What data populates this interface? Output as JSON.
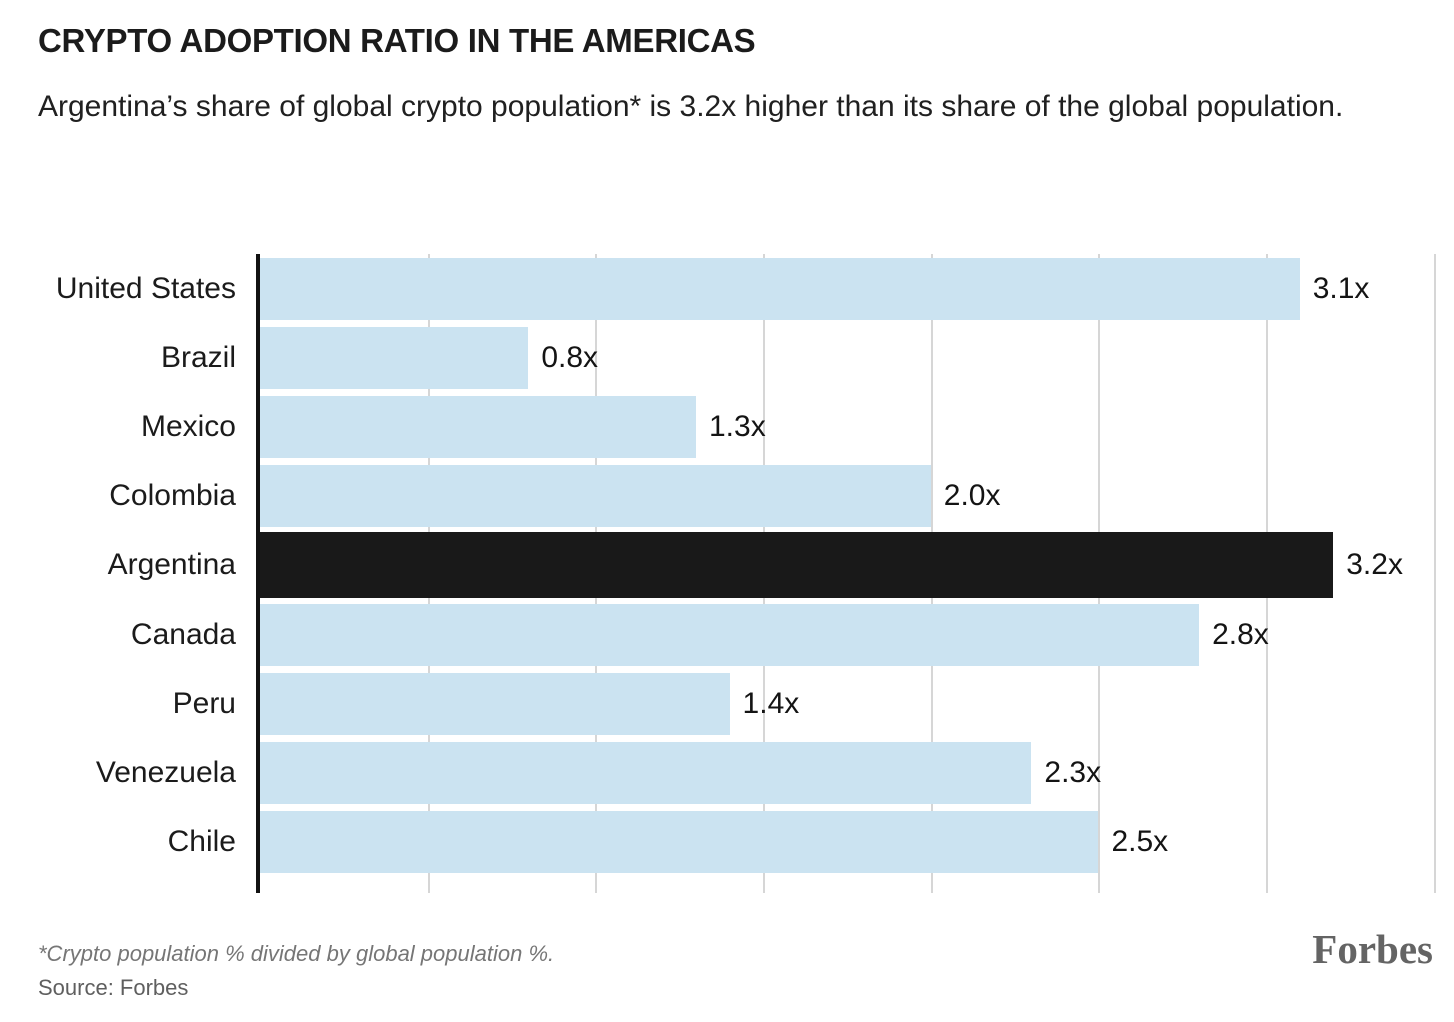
{
  "header": {
    "title": "CRYPTO ADOPTION RATIO IN THE AMERICAS",
    "subtitle": "Argentina’s share of global crypto population* is 3.2x higher than its share of the global population."
  },
  "chart_data": {
    "type": "bar",
    "orientation": "horizontal",
    "categories": [
      "United States",
      "Brazil",
      "Mexico",
      "Colombia",
      "Argentina",
      "Canada",
      "Peru",
      "Venezuela",
      "Chile"
    ],
    "values": [
      3.1,
      0.8,
      1.3,
      2.0,
      3.2,
      2.8,
      1.4,
      2.3,
      2.5
    ],
    "value_labels": [
      "3.1x",
      "0.8x",
      "1.3x",
      "2.0x",
      "3.2x",
      "2.8x",
      "1.4x",
      "2.3x",
      "2.5x"
    ],
    "highlighted_category": "Argentina",
    "axis_max": 3.56,
    "gridline_values": [
      0.5,
      1.0,
      1.5,
      2.0,
      2.5,
      3.0,
      3.5
    ],
    "grid": true,
    "legend": "none",
    "xlabel": "",
    "ylabel": "",
    "colors": {
      "bar": "#cbe3f1",
      "highlight": "#191919",
      "gridline": "#d6d6d6",
      "axis": "#121212"
    }
  },
  "footer": {
    "footnote": "*Crypto population % divided by global population %.",
    "source": "Source: Forbes",
    "brand": "Forbes"
  }
}
